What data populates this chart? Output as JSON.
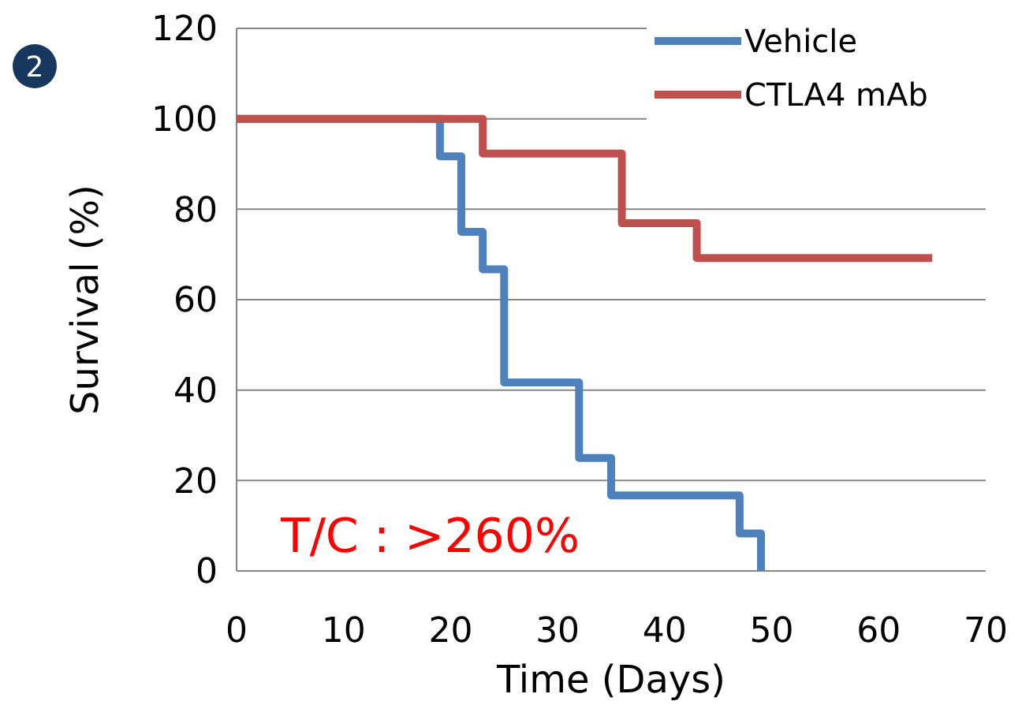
{
  "chart_data": {
    "type": "step",
    "xlabel": "Time (Days)",
    "ylabel": "Survival (%)",
    "xlim": [
      0,
      70
    ],
    "xticks": [
      0,
      10,
      20,
      30,
      40,
      50,
      60,
      70
    ],
    "ylim": [
      0,
      120
    ],
    "yticks": [
      0,
      20,
      40,
      60,
      80,
      100,
      120
    ],
    "grid": "y",
    "legend": "top right",
    "line_style": "solid",
    "marker": "none",
    "series": [
      {
        "name": "Vehicle",
        "color": "#4f81bd",
        "x": [
          0,
          19,
          21,
          23,
          25,
          32,
          35,
          47,
          49
        ],
        "values": [
          100,
          91.7,
          75,
          66.7,
          41.7,
          25,
          16.7,
          8.3,
          0
        ]
      },
      {
        "name": "CTLA4 mAb",
        "color": "#c0504d",
        "x": [
          0,
          23,
          36,
          43,
          65
        ],
        "values": [
          100,
          92.3,
          76.9,
          69.2,
          69.2
        ]
      }
    ],
    "annotations": [
      "2",
      "T/C : >260%"
    ]
  }
}
